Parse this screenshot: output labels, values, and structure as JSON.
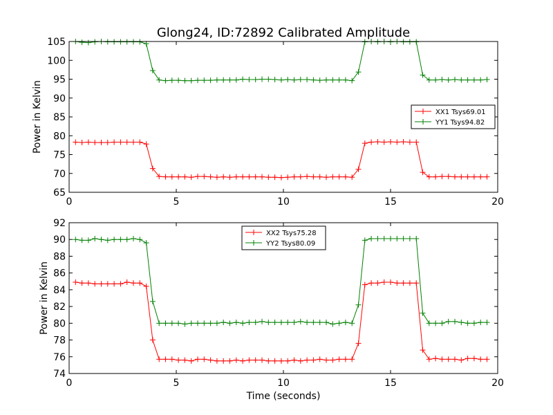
{
  "figure": {
    "title": "Glong24, ID:72892 Calibrated Amplitude",
    "xlabel": "Time (seconds)"
  },
  "chart_data": [
    {
      "type": "line",
      "ylabel": "Power in Kelvin",
      "xlim": [
        0,
        20
      ],
      "ylim": [
        65,
        105
      ],
      "xticks": [
        0,
        5,
        10,
        15,
        20
      ],
      "yticks": [
        65,
        70,
        75,
        80,
        85,
        90,
        95,
        100,
        105
      ],
      "legend_position": "center-right",
      "x": [
        0.3,
        0.6,
        0.9,
        1.2,
        1.5,
        1.8,
        2.1,
        2.4,
        2.7,
        3.0,
        3.3,
        3.6,
        3.9,
        4.2,
        4.5,
        4.8,
        5.1,
        5.4,
        5.7,
        6.0,
        6.3,
        6.6,
        6.9,
        7.2,
        7.5,
        7.8,
        8.1,
        8.4,
        8.7,
        9.0,
        9.3,
        9.6,
        9.9,
        10.2,
        10.5,
        10.8,
        11.1,
        11.4,
        11.7,
        12.0,
        12.3,
        12.6,
        12.9,
        13.2,
        13.5,
        13.8,
        14.1,
        14.4,
        14.7,
        15.0,
        15.3,
        15.6,
        15.9,
        16.2,
        16.5,
        16.8,
        17.1,
        17.4,
        17.7,
        18.0,
        18.3,
        18.6,
        18.9,
        19.2,
        19.5
      ],
      "series": [
        {
          "name": "XX1 Tsys69.01",
          "color": "#ff0000",
          "values": [
            78.3,
            78.2,
            78.3,
            78.2,
            78.2,
            78.2,
            78.3,
            78.3,
            78.3,
            78.3,
            78.3,
            77.8,
            71.3,
            69.2,
            69.1,
            69.1,
            69.1,
            69.1,
            69.0,
            69.2,
            69.2,
            69.1,
            69.0,
            69.1,
            69.0,
            69.1,
            69.1,
            69.1,
            69.1,
            69.1,
            69.0,
            69.0,
            68.9,
            69.0,
            69.1,
            69.1,
            69.2,
            69.1,
            69.1,
            69.0,
            69.1,
            69.1,
            69.1,
            69.0,
            71.1,
            78.0,
            78.3,
            78.4,
            78.3,
            78.4,
            78.3,
            78.4,
            78.3,
            78.3,
            70.3,
            69.1,
            69.1,
            69.2,
            69.2,
            69.1,
            69.1,
            69.1,
            69.1,
            69.1,
            69.1
          ]
        },
        {
          "name": "YY1 Tsys94.82",
          "color": "#008000",
          "values": [
            105.0,
            104.8,
            104.7,
            104.9,
            105.0,
            104.9,
            104.9,
            104.9,
            104.9,
            104.9,
            104.9,
            104.4,
            97.3,
            94.8,
            94.6,
            94.7,
            94.7,
            94.6,
            94.6,
            94.7,
            94.7,
            94.7,
            94.8,
            94.8,
            94.8,
            94.8,
            95.0,
            94.9,
            94.9,
            95.0,
            95.0,
            94.9,
            94.8,
            94.9,
            94.8,
            94.9,
            94.9,
            94.8,
            94.7,
            94.8,
            94.8,
            94.8,
            94.8,
            94.6,
            96.9,
            104.9,
            105.0,
            104.9,
            105.0,
            104.9,
            105.0,
            104.9,
            104.9,
            104.9,
            96.1,
            94.8,
            94.8,
            94.9,
            94.8,
            94.9,
            94.8,
            94.8,
            94.8,
            94.8,
            94.9
          ]
        }
      ]
    },
    {
      "type": "line",
      "ylabel": "Power in Kelvin",
      "xlabel": "Time (seconds)",
      "xlim": [
        0,
        20
      ],
      "ylim": [
        74,
        92
      ],
      "xticks": [
        0,
        5,
        10,
        15,
        20
      ],
      "yticks": [
        74,
        76,
        78,
        80,
        82,
        84,
        86,
        88,
        90,
        92
      ],
      "legend_position": "upper-center",
      "x": [
        0.3,
        0.6,
        0.9,
        1.2,
        1.5,
        1.8,
        2.1,
        2.4,
        2.7,
        3.0,
        3.3,
        3.6,
        3.9,
        4.2,
        4.5,
        4.8,
        5.1,
        5.4,
        5.7,
        6.0,
        6.3,
        6.6,
        6.9,
        7.2,
        7.5,
        7.8,
        8.1,
        8.4,
        8.7,
        9.0,
        9.3,
        9.6,
        9.9,
        10.2,
        10.5,
        10.8,
        11.1,
        11.4,
        11.7,
        12.0,
        12.3,
        12.6,
        12.9,
        13.2,
        13.5,
        13.8,
        14.1,
        14.4,
        14.7,
        15.0,
        15.3,
        15.6,
        15.9,
        16.2,
        16.5,
        16.8,
        17.1,
        17.4,
        17.7,
        18.0,
        18.3,
        18.6,
        18.9,
        19.2,
        19.5
      ],
      "series": [
        {
          "name": "XX2 Tsys75.28",
          "color": "#ff0000",
          "values": [
            84.9,
            84.8,
            84.8,
            84.7,
            84.7,
            84.7,
            84.7,
            84.7,
            84.9,
            84.8,
            84.8,
            84.4,
            78.0,
            75.7,
            75.7,
            75.7,
            75.6,
            75.6,
            75.5,
            75.7,
            75.7,
            75.6,
            75.5,
            75.5,
            75.5,
            75.6,
            75.5,
            75.6,
            75.6,
            75.6,
            75.5,
            75.5,
            75.5,
            75.5,
            75.6,
            75.5,
            75.6,
            75.6,
            75.7,
            75.6,
            75.6,
            75.7,
            75.7,
            75.7,
            77.6,
            84.6,
            84.8,
            84.8,
            84.9,
            84.9,
            84.8,
            84.8,
            84.8,
            84.8,
            76.8,
            75.7,
            75.8,
            75.7,
            75.7,
            75.7,
            75.6,
            75.8,
            75.8,
            75.7,
            75.7
          ]
        },
        {
          "name": "YY2 Tsys80.09",
          "color": "#008000",
          "values": [
            90.0,
            89.9,
            89.9,
            90.1,
            90.0,
            89.9,
            90.0,
            90.0,
            90.0,
            90.1,
            90.0,
            89.6,
            82.6,
            80.0,
            80.0,
            80.0,
            80.0,
            79.9,
            80.0,
            80.0,
            80.0,
            80.0,
            80.0,
            80.1,
            80.0,
            80.1,
            80.0,
            80.1,
            80.1,
            80.2,
            80.1,
            80.1,
            80.1,
            80.1,
            80.1,
            80.2,
            80.1,
            80.1,
            80.1,
            80.1,
            79.9,
            80.0,
            80.1,
            80.0,
            82.2,
            89.9,
            90.1,
            90.1,
            90.1,
            90.1,
            90.1,
            90.1,
            90.1,
            90.1,
            81.2,
            80.0,
            80.0,
            80.0,
            80.2,
            80.2,
            80.1,
            80.0,
            80.0,
            80.1,
            80.1
          ]
        }
      ]
    }
  ]
}
